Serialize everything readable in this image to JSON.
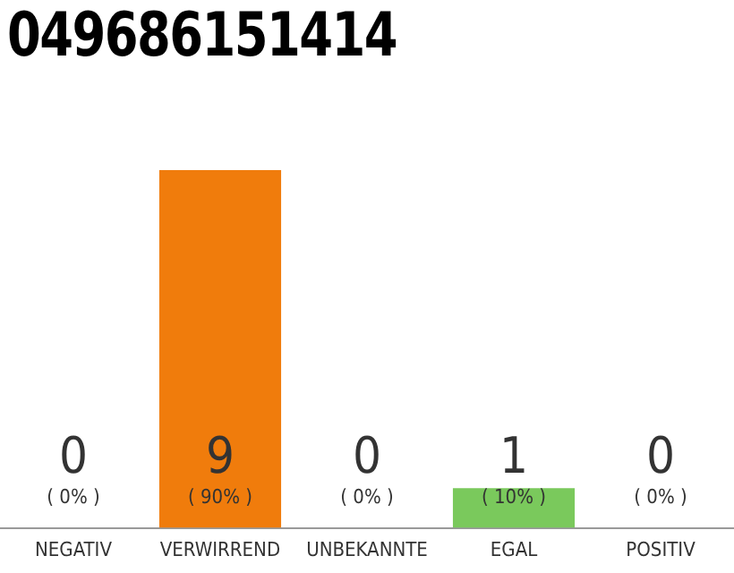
{
  "chart_data": {
    "type": "bar",
    "title": "049686151414",
    "categories": [
      "NEGATIV",
      "VERWIRREND",
      "UNBEKANNTE",
      "EGAL",
      "POSITIV"
    ],
    "values": [
      0,
      9,
      0,
      1,
      0
    ],
    "colors": [
      "#e0e0e0",
      "#f07c0c",
      "#e0e0e0",
      "#7ac95c",
      "#e0e0e0"
    ],
    "data_labels": true,
    "annotations": [
      "( 0% )",
      "( 90% )",
      "( 0% )",
      "( 10% )",
      "( 0% )"
    ],
    "grid": false,
    "legend": false
  }
}
